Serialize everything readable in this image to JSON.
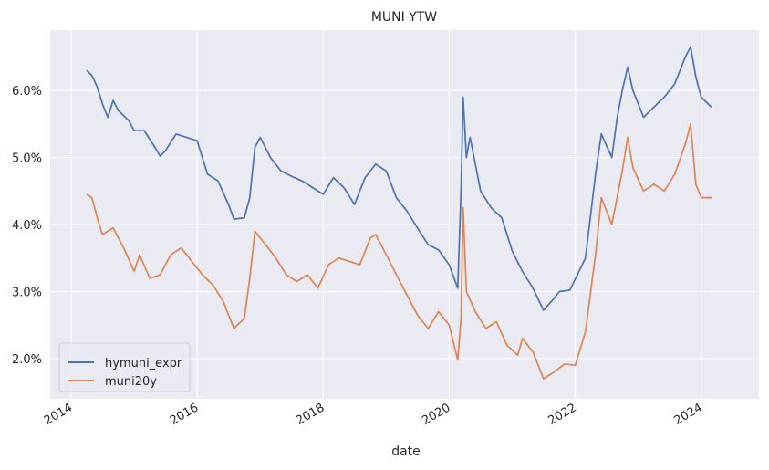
{
  "chart_data": {
    "type": "line",
    "title": "MUNI YTW",
    "xlabel": "date",
    "ylabel": "",
    "x_type": "date",
    "xlim": [
      "2013-09-01",
      "2024-12-01"
    ],
    "ylim": [
      1.4,
      6.9
    ],
    "x_ticks": [
      "2014-01-01",
      "2016-01-01",
      "2018-01-01",
      "2020-01-01",
      "2022-01-01",
      "2024-01-01"
    ],
    "x_tick_labels": [
      "2014",
      "2016",
      "2018",
      "2020",
      "2022",
      "2024"
    ],
    "y_ticks": [
      2.0,
      3.0,
      4.0,
      5.0,
      6.0
    ],
    "y_tick_labels": [
      "2.0%",
      "3.0%",
      "4.0%",
      "5.0%",
      "6.0%"
    ],
    "grid": true,
    "legend_position": "lower-left",
    "colors": {
      "background": "#eaeaf2",
      "grid": "#ffffff",
      "hymuni_expr": "#4c72b0",
      "muni20y": "#dd8452"
    },
    "series": [
      {
        "name": "hymuni_expr",
        "color": "#4c72b0",
        "points": [
          [
            "2014-04-01",
            6.3
          ],
          [
            "2014-05-01",
            6.22
          ],
          [
            "2014-06-01",
            6.05
          ],
          [
            "2014-07-01",
            5.8
          ],
          [
            "2014-08-01",
            5.6
          ],
          [
            "2014-09-01",
            5.85
          ],
          [
            "2014-10-01",
            5.7
          ],
          [
            "2014-12-01",
            5.55
          ],
          [
            "2015-01-01",
            5.4
          ],
          [
            "2015-03-01",
            5.4
          ],
          [
            "2015-05-01",
            5.15
          ],
          [
            "2015-06-01",
            5.02
          ],
          [
            "2015-07-01",
            5.1
          ],
          [
            "2015-09-01",
            5.35
          ],
          [
            "2015-11-01",
            5.3
          ],
          [
            "2016-01-01",
            5.25
          ],
          [
            "2016-03-01",
            4.75
          ],
          [
            "2016-05-01",
            4.65
          ],
          [
            "2016-07-01",
            4.3
          ],
          [
            "2016-08-01",
            4.08
          ],
          [
            "2016-10-01",
            4.1
          ],
          [
            "2016-11-01",
            4.4
          ],
          [
            "2016-12-01",
            5.15
          ],
          [
            "2017-01-01",
            5.3
          ],
          [
            "2017-03-01",
            5.0
          ],
          [
            "2017-05-01",
            4.8
          ],
          [
            "2017-07-01",
            4.72
          ],
          [
            "2017-09-01",
            4.65
          ],
          [
            "2017-11-01",
            4.55
          ],
          [
            "2018-01-01",
            4.45
          ],
          [
            "2018-03-01",
            4.7
          ],
          [
            "2018-05-01",
            4.55
          ],
          [
            "2018-07-01",
            4.3
          ],
          [
            "2018-09-01",
            4.7
          ],
          [
            "2018-11-01",
            4.9
          ],
          [
            "2019-01-01",
            4.8
          ],
          [
            "2019-03-01",
            4.4
          ],
          [
            "2019-05-01",
            4.2
          ],
          [
            "2019-07-01",
            3.95
          ],
          [
            "2019-09-01",
            3.7
          ],
          [
            "2019-11-01",
            3.62
          ],
          [
            "2020-01-01",
            3.4
          ],
          [
            "2020-02-20",
            3.05
          ],
          [
            "2020-03-10",
            4.5
          ],
          [
            "2020-03-22",
            5.9
          ],
          [
            "2020-04-10",
            5.0
          ],
          [
            "2020-05-01",
            5.3
          ],
          [
            "2020-06-01",
            4.9
          ],
          [
            "2020-07-01",
            4.5
          ],
          [
            "2020-09-01",
            4.25
          ],
          [
            "2020-11-01",
            4.1
          ],
          [
            "2021-01-01",
            3.6
          ],
          [
            "2021-03-01",
            3.3
          ],
          [
            "2021-05-01",
            3.05
          ],
          [
            "2021-07-01",
            2.72
          ],
          [
            "2021-09-01",
            2.9
          ],
          [
            "2021-10-01",
            3.0
          ],
          [
            "2021-12-01",
            3.02
          ],
          [
            "2022-03-01",
            3.5
          ],
          [
            "2022-05-01",
            4.8
          ],
          [
            "2022-06-01",
            5.35
          ],
          [
            "2022-08-01",
            5.0
          ],
          [
            "2022-09-01",
            5.6
          ],
          [
            "2022-10-01",
            6.0
          ],
          [
            "2022-11-01",
            6.35
          ],
          [
            "2022-12-01",
            6.0
          ],
          [
            "2023-02-01",
            5.6
          ],
          [
            "2023-04-01",
            5.75
          ],
          [
            "2023-06-01",
            5.9
          ],
          [
            "2023-08-01",
            6.1
          ],
          [
            "2023-10-01",
            6.5
          ],
          [
            "2023-11-01",
            6.65
          ],
          [
            "2023-12-01",
            6.2
          ],
          [
            "2024-01-01",
            5.9
          ],
          [
            "2024-03-01",
            5.75
          ]
        ]
      },
      {
        "name": "muni20y",
        "color": "#dd8452",
        "points": [
          [
            "2014-04-01",
            4.45
          ],
          [
            "2014-05-01",
            4.4
          ],
          [
            "2014-06-01",
            4.1
          ],
          [
            "2014-07-01",
            3.85
          ],
          [
            "2014-09-01",
            3.95
          ],
          [
            "2014-11-01",
            3.65
          ],
          [
            "2015-01-01",
            3.3
          ],
          [
            "2015-02-01",
            3.55
          ],
          [
            "2015-04-01",
            3.2
          ],
          [
            "2015-06-01",
            3.25
          ],
          [
            "2015-08-01",
            3.55
          ],
          [
            "2015-10-01",
            3.65
          ],
          [
            "2015-12-01",
            3.45
          ],
          [
            "2016-02-01",
            3.25
          ],
          [
            "2016-04-01",
            3.1
          ],
          [
            "2016-06-01",
            2.85
          ],
          [
            "2016-08-01",
            2.45
          ],
          [
            "2016-10-01",
            2.6
          ],
          [
            "2016-11-01",
            3.2
          ],
          [
            "2016-12-01",
            3.9
          ],
          [
            "2017-02-01",
            3.7
          ],
          [
            "2017-04-01",
            3.5
          ],
          [
            "2017-06-01",
            3.25
          ],
          [
            "2017-08-01",
            3.15
          ],
          [
            "2017-10-01",
            3.25
          ],
          [
            "2017-12-01",
            3.05
          ],
          [
            "2018-02-01",
            3.4
          ],
          [
            "2018-04-01",
            3.5
          ],
          [
            "2018-06-01",
            3.45
          ],
          [
            "2018-08-01",
            3.4
          ],
          [
            "2018-10-01",
            3.8
          ],
          [
            "2018-11-01",
            3.85
          ],
          [
            "2019-01-01",
            3.55
          ],
          [
            "2019-03-01",
            3.25
          ],
          [
            "2019-05-01",
            2.95
          ],
          [
            "2019-07-01",
            2.65
          ],
          [
            "2019-09-01",
            2.45
          ],
          [
            "2019-11-01",
            2.7
          ],
          [
            "2020-01-01",
            2.5
          ],
          [
            "2020-02-20",
            1.98
          ],
          [
            "2020-03-10",
            2.6
          ],
          [
            "2020-03-22",
            4.25
          ],
          [
            "2020-04-10",
            3.0
          ],
          [
            "2020-06-01",
            2.7
          ],
          [
            "2020-08-01",
            2.45
          ],
          [
            "2020-10-01",
            2.55
          ],
          [
            "2020-12-01",
            2.2
          ],
          [
            "2021-02-01",
            2.05
          ],
          [
            "2021-03-01",
            2.3
          ],
          [
            "2021-05-01",
            2.1
          ],
          [
            "2021-07-01",
            1.7
          ],
          [
            "2021-09-01",
            1.8
          ],
          [
            "2021-11-01",
            1.92
          ],
          [
            "2022-01-01",
            1.9
          ],
          [
            "2022-03-01",
            2.4
          ],
          [
            "2022-05-01",
            3.6
          ],
          [
            "2022-06-01",
            4.4
          ],
          [
            "2022-08-01",
            4.0
          ],
          [
            "2022-10-01",
            4.8
          ],
          [
            "2022-11-01",
            5.3
          ],
          [
            "2022-12-01",
            4.85
          ],
          [
            "2023-02-01",
            4.5
          ],
          [
            "2023-04-01",
            4.6
          ],
          [
            "2023-06-01",
            4.5
          ],
          [
            "2023-08-01",
            4.75
          ],
          [
            "2023-10-01",
            5.2
          ],
          [
            "2023-11-01",
            5.5
          ],
          [
            "2023-12-01",
            4.6
          ],
          [
            "2024-01-01",
            4.4
          ],
          [
            "2024-03-01",
            4.4
          ]
        ]
      }
    ]
  }
}
